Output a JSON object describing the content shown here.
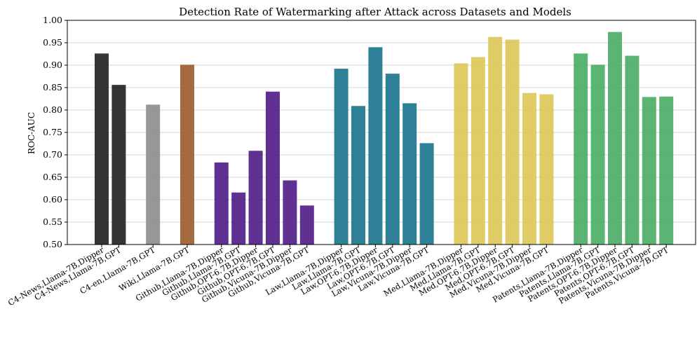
{
  "chart_data": {
    "type": "bar",
    "title": "Detection Rate of Watermarking after Attack across Datasets and Models",
    "xlabel": "",
    "ylabel": "ROC-AUC",
    "ylim": [
      0.5,
      1.0
    ],
    "yticks": [
      "0.50",
      "0.55",
      "0.60",
      "0.65",
      "0.70",
      "0.75",
      "0.80",
      "0.85",
      "0.90",
      "0.95",
      "1.00"
    ],
    "grid": "horizontal",
    "legend": "none",
    "groups": [
      {
        "color": "#1f1f1f",
        "bars": [
          {
            "label": "C4-News,Llama-7B,Dipper",
            "value": 0.926
          },
          {
            "label": "C4-News,Llama-7B,GPT",
            "value": 0.856
          }
        ]
      },
      {
        "color": "#8c8c8c",
        "bars": [
          {
            "label": "C4-en,Llama-7B,GPT",
            "value": 0.812
          }
        ]
      },
      {
        "color": "#9c5a2c",
        "bars": [
          {
            "label": "Wiki,Llama-7B,GPT",
            "value": 0.901
          }
        ]
      },
      {
        "color": "#4f1b87",
        "bars": [
          {
            "label": "Github,Llama-7B,Dipper",
            "value": 0.683
          },
          {
            "label": "Github,Llama-7B,GPT",
            "value": 0.616
          },
          {
            "label": "Github,OPT-6.7B,Dipper",
            "value": 0.709
          },
          {
            "label": "Github,OPT-6.7B,GPT",
            "value": 0.841
          },
          {
            "label": "Github,Vicuna-7B,Dipper",
            "value": 0.643
          },
          {
            "label": "Github,Vicuna-7B,GPT",
            "value": 0.587
          }
        ]
      },
      {
        "color": "#17728c",
        "bars": [
          {
            "label": "Law,Llama-7B,Dipper",
            "value": 0.892
          },
          {
            "label": "Law,Llama-7B,GPT",
            "value": 0.809
          },
          {
            "label": "Law,OPT-6.7B,Dipper",
            "value": 0.94
          },
          {
            "label": "Law,OPT-6.7B,GPT",
            "value": 0.881
          },
          {
            "label": "Law,Vicuna-7B,Dipper",
            "value": 0.815
          },
          {
            "label": "Law,Vicuna-7B,GPT",
            "value": 0.726
          }
        ]
      },
      {
        "color": "#dcc655",
        "bars": [
          {
            "label": "Med,Llama-7B,Dipper",
            "value": 0.904
          },
          {
            "label": "Med,Llama-7B,GPT",
            "value": 0.918
          },
          {
            "label": "Med,OPT-6.7B,Dipper",
            "value": 0.963
          },
          {
            "label": "Med,OPT-6.7B,GPT",
            "value": 0.957
          },
          {
            "label": "Med,Vicuna-7B,Dipper",
            "value": 0.838
          },
          {
            "label": "Med,Vicuna-7B,GPT",
            "value": 0.835
          }
        ]
      },
      {
        "color": "#49ab65",
        "bars": [
          {
            "label": "Patents,Llama-7B,Dipper",
            "value": 0.926
          },
          {
            "label": "Patents,Llama-7B,GPT",
            "value": 0.901
          },
          {
            "label": "Patents,OPT-6.7B,Dipper",
            "value": 0.974
          },
          {
            "label": "Patents,OPT-6.7B,GPT",
            "value": 0.921
          },
          {
            "label": "Patents,Vicuna-7B,Dipper",
            "value": 0.829
          },
          {
            "label": "Patents,Vicuna-7B,GPT",
            "value": 0.83
          }
        ]
      }
    ]
  }
}
